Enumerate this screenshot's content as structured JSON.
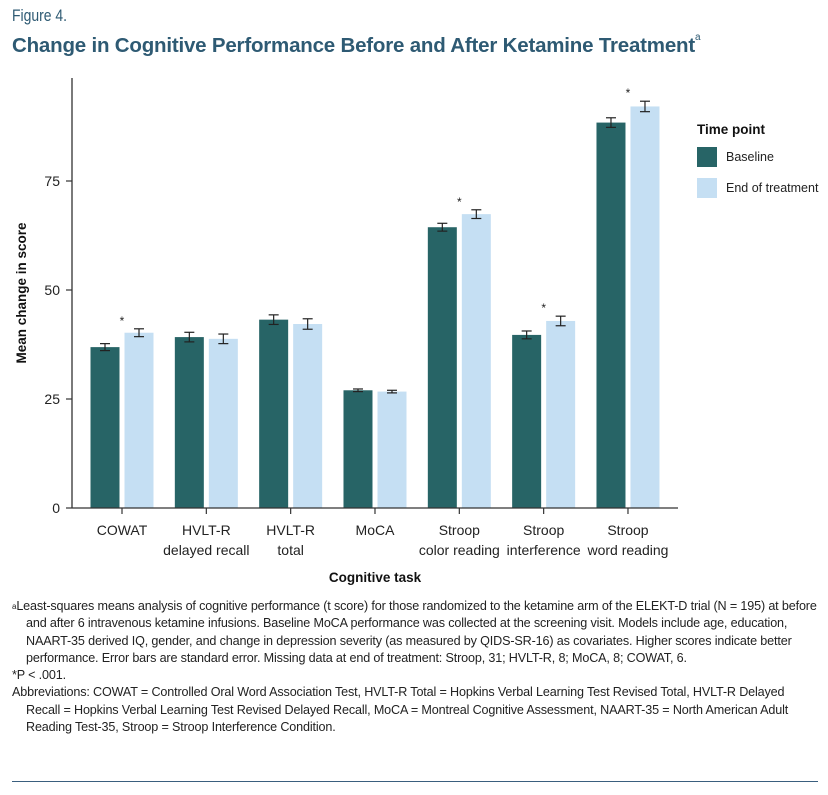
{
  "figure_label": "Figure 4.",
  "title": "Change in Cognitive Performance Before and After Ketamine Treatment",
  "title_superscript": "a",
  "legend": {
    "title": "Time point",
    "items": [
      {
        "label": "Baseline",
        "color": "#276466"
      },
      {
        "label": "End of treatment",
        "color": "#c5dff3"
      }
    ]
  },
  "chart_data": {
    "type": "bar",
    "title": "Change in Cognitive Performance Before and After Ketamine Treatment",
    "xlabel": "Cognitive task",
    "ylabel": "Mean change in score",
    "ylim": [
      0,
      99
    ],
    "yticks": [
      0,
      25,
      50,
      75
    ],
    "grid": false,
    "legend_placement": "right",
    "categories": [
      [
        "COWAT"
      ],
      [
        "HVLT-R",
        "delayed recall"
      ],
      [
        "HVLT-R",
        "total"
      ],
      [
        "MoCA"
      ],
      [
        "Stroop",
        "color reading"
      ],
      [
        "Stroop",
        "interference"
      ],
      [
        "Stroop",
        "word reading"
      ]
    ],
    "series": [
      {
        "name": "Baseline",
        "color": "#276466",
        "values": [
          36.9,
          39.2,
          43.2,
          27.0,
          64.4,
          39.7,
          88.4
        ],
        "errors": [
          0.8,
          1.1,
          1.1,
          0.3,
          0.9,
          0.9,
          1.1
        ]
      },
      {
        "name": "End of treatment",
        "color": "#c5dff3",
        "values": [
          40.2,
          38.8,
          42.2,
          26.7,
          67.4,
          42.9,
          92.1
        ],
        "errors": [
          0.9,
          1.1,
          1.2,
          0.3,
          1.0,
          1.1,
          1.2
        ]
      }
    ],
    "significance": [
      true,
      false,
      false,
      false,
      true,
      true,
      true
    ],
    "significance_marker": "*"
  },
  "notes": {
    "footnote_a_marker": "a",
    "footnote_a": "Least-squares means analysis of cognitive performance (t score) for those randomized to the ketamine arm of the ELEKT-D trial (N = 195) at before and after 6 intravenous ketamine infusions. Baseline MoCA performance was collected at the screening visit. Models include age, education, NAART-35 derived IQ, gender, and change in depression severity (as measured by QIDS-SR-16) as covariates. Higher scores indicate better performance. Error bars are standard error. Missing data at end of treatment: Stroop, 31; HVLT-R, 8; MoCA, 8; COWAT, 6.",
    "significance": "*P < .001.",
    "abbreviations": "Abbreviations: COWAT = Controlled Oral Word Association Test, HVLT-R Total = Hopkins Verbal Learning Test Revised Total, HVLT-R Delayed Recall = Hopkins Verbal Learning Test Revised Delayed Recall, MoCA = Montreal Cognitive Assessment, NAART-35 = North American Adult Reading Test-35, Stroop = Stroop Interference Condition."
  }
}
